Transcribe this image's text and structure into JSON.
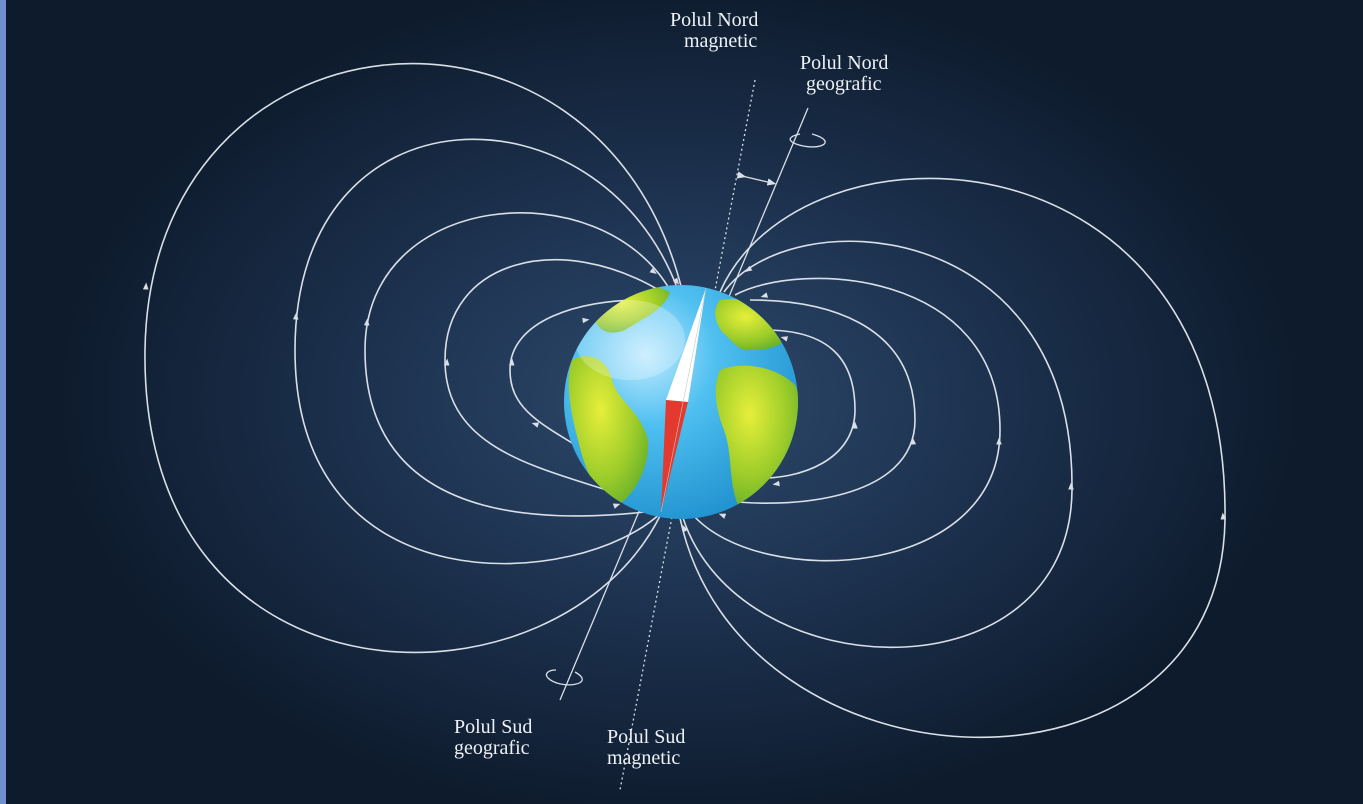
{
  "labels": {
    "north_magnetic": {
      "line1": "Polul Nord",
      "line2": "magnetic"
    },
    "north_geographic": {
      "line1": "Polul Nord",
      "line2": "geografic"
    },
    "south_geographic": {
      "line1": "Polul Sud",
      "line2": "geografic"
    },
    "south_magnetic": {
      "line1": "Polul Sud",
      "line2": "magnetic"
    }
  },
  "colors": {
    "background": "#162840",
    "field_line": "#d9dfe6",
    "ocean": "#35aee6",
    "land": "#8ac43a",
    "needle_north": "#ffffff",
    "needle_south": "#e23a2e",
    "frame": "#6f8fd0"
  },
  "icons": {
    "earth": "earth-globe-icon",
    "compass": "compass-needle-icon",
    "rotation": "rotation-arrow-icon"
  }
}
